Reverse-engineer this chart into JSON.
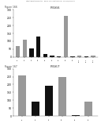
{
  "header": "Patent Application Publication    May 16, 2013  Sheet 148 of 152   US 2013/0124231 A1",
  "figure1": {
    "label": "Figure 166",
    "title": "FIG66",
    "categories": [
      "s1",
      "s2",
      "s3",
      "s4",
      "s5",
      "s6",
      "s7",
      "s8",
      "s9",
      "s10",
      "s11",
      "s12"
    ],
    "bars_gray": [
      70,
      110,
      0,
      0,
      0,
      0,
      0,
      260,
      0,
      10,
      0,
      10
    ],
    "bars_dark": [
      0,
      0,
      55,
      130,
      20,
      10,
      5,
      0,
      5,
      0,
      5,
      0
    ],
    "gray_color": "#999999",
    "dark_color": "#111111",
    "ylim": [
      0,
      300
    ],
    "yticks": [
      0,
      50,
      100,
      150,
      200,
      250,
      300
    ]
  },
  "figure2": {
    "label": "Figure 167",
    "title": "FIG67",
    "categories": [
      "s1",
      "s2",
      "s3",
      "s4",
      "s5",
      "s6"
    ],
    "bars_gray": [
      260,
      0,
      0,
      250,
      0,
      90
    ],
    "bars_dark": [
      0,
      90,
      190,
      0,
      5,
      0
    ],
    "gray_color": "#999999",
    "dark_color": "#111111",
    "ylim": [
      0,
      300
    ],
    "yticks": [
      0,
      50,
      100,
      150,
      200,
      250,
      300
    ]
  },
  "bg_color": "#ffffff",
  "bar_width": 0.6
}
